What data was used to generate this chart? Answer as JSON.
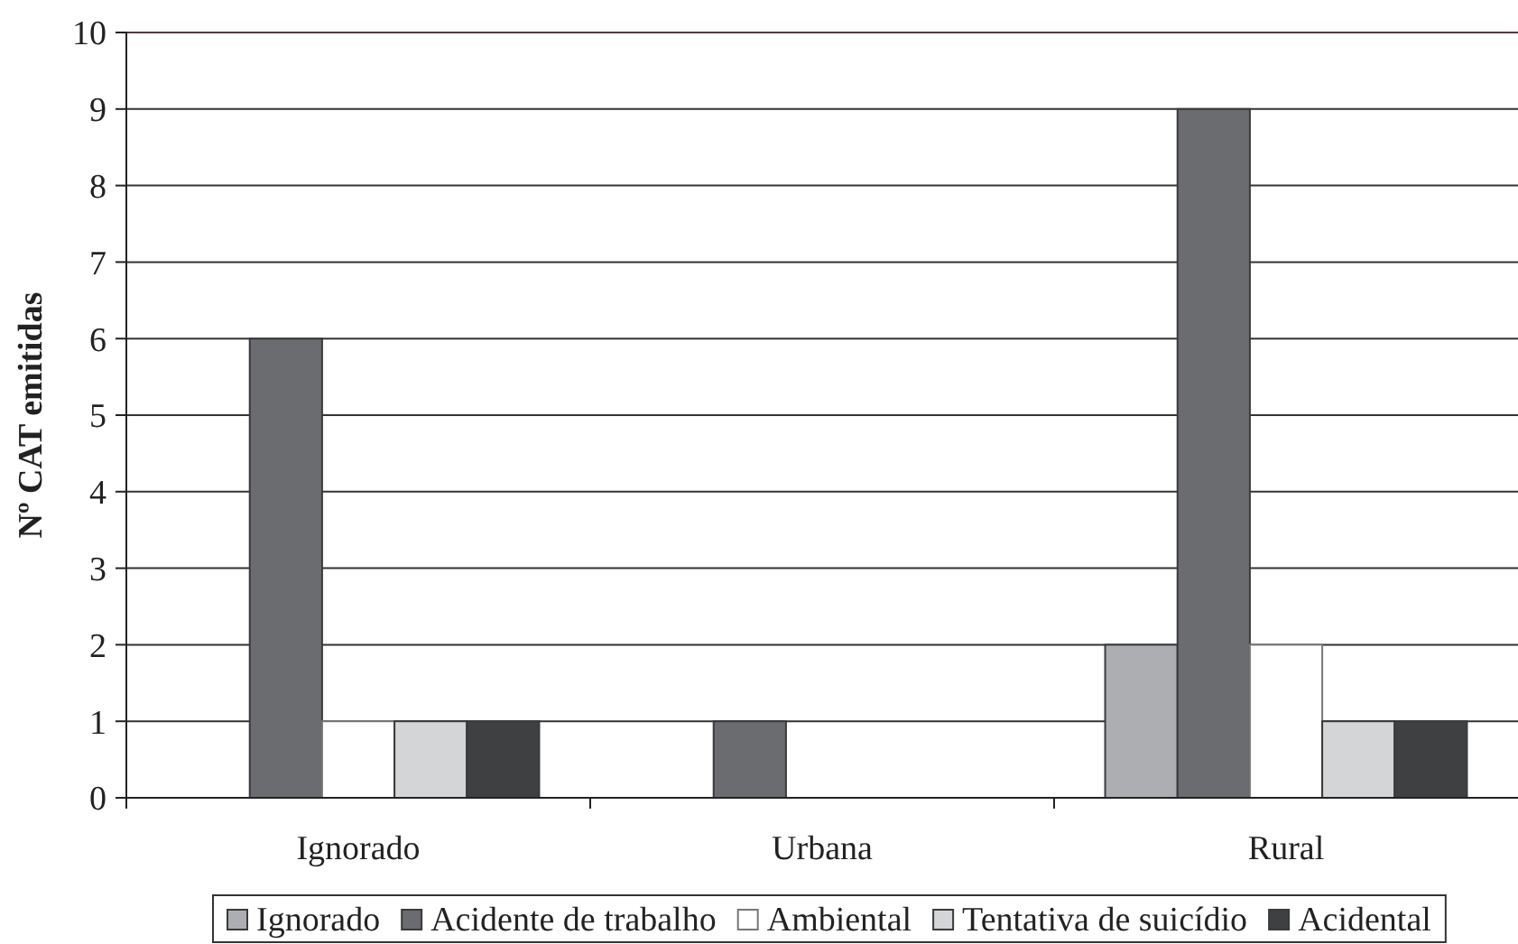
{
  "chart_data": {
    "type": "bar",
    "ylabel": "Nº CAT emitidas",
    "categories": [
      "Ignorado",
      "Urbana",
      "Rural"
    ],
    "series": [
      {
        "name": "Ignorado",
        "color": "#adaeb2",
        "values": [
          0,
          0,
          2
        ]
      },
      {
        "name": "Acidente de trabalho",
        "color": "#6b6c70",
        "values": [
          6,
          1,
          9
        ]
      },
      {
        "name": "Ambiental",
        "color": "#ffffff",
        "values": [
          1,
          0,
          2
        ]
      },
      {
        "name": "Tentativa de suicídio",
        "color": "#d4d5d7",
        "values": [
          1,
          0,
          1
        ]
      },
      {
        "name": "Acidental",
        "color": "#3f4042",
        "values": [
          1,
          0,
          1
        ]
      }
    ],
    "ylim": [
      0,
      10
    ],
    "yticks": [
      0,
      1,
      2,
      3,
      4,
      5,
      6,
      7,
      8,
      9,
      10
    ],
    "grid": "y",
    "legend": "bottom"
  }
}
